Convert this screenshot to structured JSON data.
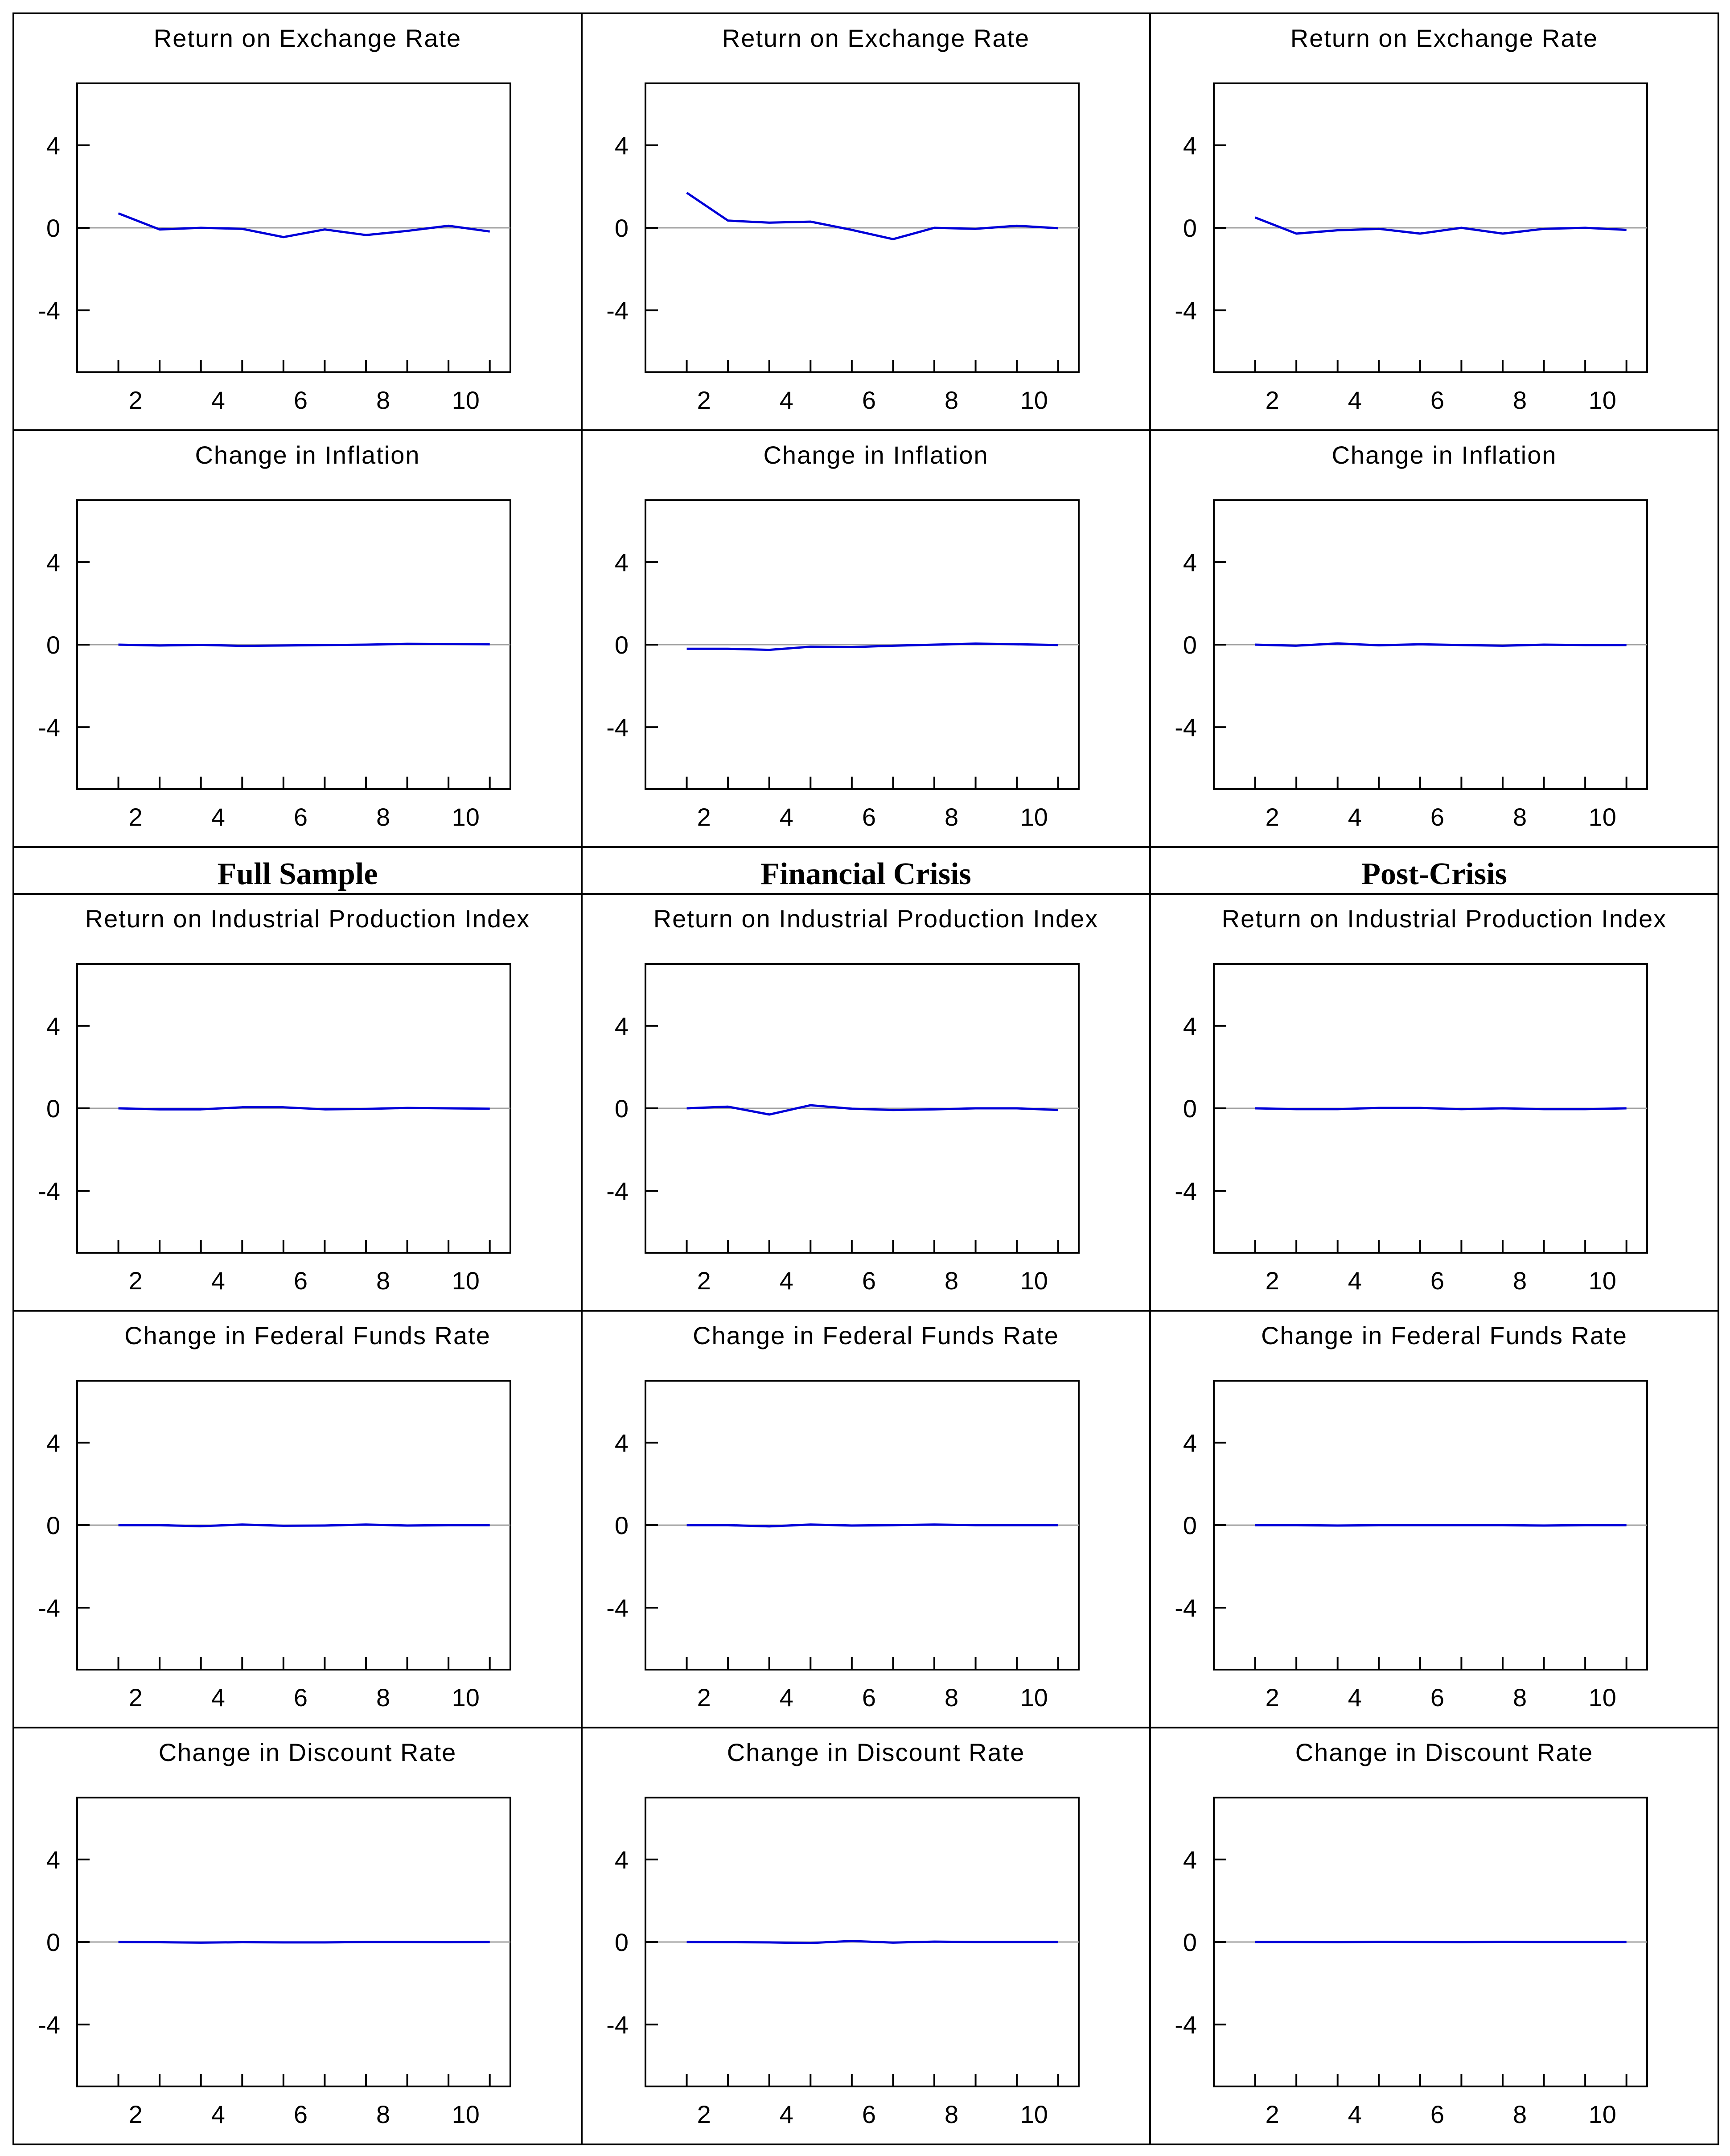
{
  "figure": {
    "column_headers": [
      "Full Sample",
      "Financial Crisis",
      "Post-Crisis"
    ],
    "row_titles": [
      "Return on Exchange Rate",
      "Change in Inflation",
      "Return on Industrial Production Index",
      "Change in Federal Funds Rate",
      "Change in Discount Rate"
    ],
    "line_color": "#0000d8",
    "zero_line_color": "#a0a0a0"
  },
  "chart_data": [
    {
      "type": "line",
      "title": "Return on Exchange Rate",
      "panel": "Full Sample",
      "x": [
        1,
        2,
        3,
        4,
        5,
        6,
        7,
        8,
        9,
        10
      ],
      "values": [
        0.7,
        -0.08,
        0.0,
        -0.05,
        -0.45,
        -0.08,
        -0.35,
        -0.15,
        0.1,
        -0.18
      ],
      "xticks": [
        2,
        4,
        6,
        8,
        10
      ],
      "yticks": [
        4,
        0,
        -4
      ],
      "xlim": [
        0,
        10.5
      ],
      "ylim": [
        -7,
        7
      ],
      "grid": false
    },
    {
      "type": "line",
      "title": "Return on Exchange Rate",
      "panel": "Financial Crisis",
      "x": [
        1,
        2,
        3,
        4,
        5,
        6,
        7,
        8,
        9,
        10
      ],
      "values": [
        1.7,
        0.35,
        0.25,
        0.3,
        -0.1,
        -0.55,
        0.0,
        -0.05,
        0.1,
        -0.02
      ],
      "xticks": [
        2,
        4,
        6,
        8,
        10
      ],
      "yticks": [
        4,
        0,
        -4
      ],
      "xlim": [
        0,
        10.5
      ],
      "ylim": [
        -7,
        7
      ],
      "grid": false
    },
    {
      "type": "line",
      "title": "Return on Exchange Rate",
      "panel": "Post-Crisis",
      "x": [
        1,
        2,
        3,
        4,
        5,
        6,
        7,
        8,
        9,
        10
      ],
      "values": [
        0.5,
        -0.28,
        -0.12,
        -0.05,
        -0.28,
        0.0,
        -0.28,
        -0.05,
        0.0,
        -0.1
      ],
      "xticks": [
        2,
        4,
        6,
        8,
        10
      ],
      "yticks": [
        4,
        0,
        -4
      ],
      "xlim": [
        0,
        10.5
      ],
      "ylim": [
        -7,
        7
      ],
      "grid": false
    },
    {
      "type": "line",
      "title": "Change in Inflation",
      "panel": "Full Sample",
      "x": [
        1,
        2,
        3,
        4,
        5,
        6,
        7,
        8,
        9,
        10
      ],
      "values": [
        0.0,
        -0.04,
        -0.01,
        -0.06,
        -0.04,
        -0.02,
        0.0,
        0.04,
        0.03,
        0.02
      ],
      "xticks": [
        2,
        4,
        6,
        8,
        10
      ],
      "yticks": [
        4,
        0,
        -4
      ],
      "xlim": [
        0,
        10.5
      ],
      "ylim": [
        -7,
        7
      ],
      "grid": false
    },
    {
      "type": "line",
      "title": "Change in Inflation",
      "panel": "Financial Crisis",
      "x": [
        1,
        2,
        3,
        4,
        5,
        6,
        7,
        8,
        9,
        10
      ],
      "values": [
        -0.2,
        -0.2,
        -0.25,
        -0.1,
        -0.12,
        -0.05,
        0.0,
        0.05,
        0.02,
        -0.02
      ],
      "xticks": [
        2,
        4,
        6,
        8,
        10
      ],
      "yticks": [
        4,
        0,
        -4
      ],
      "xlim": [
        0,
        10.5
      ],
      "ylim": [
        -7,
        7
      ],
      "grid": false
    },
    {
      "type": "line",
      "title": "Change in Inflation",
      "panel": "Post-Crisis",
      "x": [
        1,
        2,
        3,
        4,
        5,
        6,
        7,
        8,
        9,
        10
      ],
      "values": [
        0.0,
        -0.05,
        0.06,
        -0.03,
        0.02,
        -0.02,
        -0.05,
        0.0,
        -0.02,
        -0.02
      ],
      "xticks": [
        2,
        4,
        6,
        8,
        10
      ],
      "yticks": [
        4,
        0,
        -4
      ],
      "xlim": [
        0,
        10.5
      ],
      "ylim": [
        -7,
        7
      ],
      "grid": false
    },
    {
      "type": "line",
      "title": "Return on Industrial Production Index",
      "panel": "Full Sample",
      "x": [
        1,
        2,
        3,
        4,
        5,
        6,
        7,
        8,
        9,
        10
      ],
      "values": [
        0.0,
        -0.05,
        -0.05,
        0.05,
        0.05,
        -0.05,
        -0.03,
        0.02,
        0.0,
        -0.02
      ],
      "xticks": [
        2,
        4,
        6,
        8,
        10
      ],
      "yticks": [
        4,
        0,
        -4
      ],
      "xlim": [
        0,
        10.5
      ],
      "ylim": [
        -7,
        7
      ],
      "grid": false
    },
    {
      "type": "line",
      "title": "Return on Industrial Production Index",
      "panel": "Financial Crisis",
      "x": [
        1,
        2,
        3,
        4,
        5,
        6,
        7,
        8,
        9,
        10
      ],
      "values": [
        0.0,
        0.08,
        -0.3,
        0.15,
        -0.02,
        -0.08,
        -0.05,
        0.0,
        0.0,
        -0.08
      ],
      "xticks": [
        2,
        4,
        6,
        8,
        10
      ],
      "yticks": [
        4,
        0,
        -4
      ],
      "xlim": [
        0,
        10.5
      ],
      "ylim": [
        -7,
        7
      ],
      "grid": false
    },
    {
      "type": "line",
      "title": "Return on Industrial Production Index",
      "panel": "Post-Crisis",
      "x": [
        1,
        2,
        3,
        4,
        5,
        6,
        7,
        8,
        9,
        10
      ],
      "values": [
        0.0,
        -0.04,
        -0.04,
        0.02,
        0.02,
        -0.04,
        0.0,
        -0.04,
        -0.04,
        0.0
      ],
      "xticks": [
        2,
        4,
        6,
        8,
        10
      ],
      "yticks": [
        4,
        0,
        -4
      ],
      "xlim": [
        0,
        10.5
      ],
      "ylim": [
        -7,
        7
      ],
      "grid": false
    },
    {
      "type": "line",
      "title": "Change in Federal Funds Rate",
      "panel": "Full Sample",
      "x": [
        1,
        2,
        3,
        4,
        5,
        6,
        7,
        8,
        9,
        10
      ],
      "values": [
        0.0,
        0.0,
        -0.05,
        0.03,
        -0.03,
        -0.02,
        0.03,
        -0.02,
        0.0,
        0.0
      ],
      "xticks": [
        2,
        4,
        6,
        8,
        10
      ],
      "yticks": [
        4,
        0,
        -4
      ],
      "xlim": [
        0,
        10.5
      ],
      "ylim": [
        -7,
        7
      ],
      "grid": false
    },
    {
      "type": "line",
      "title": "Change in Federal Funds Rate",
      "panel": "Financial Crisis",
      "x": [
        1,
        2,
        3,
        4,
        5,
        6,
        7,
        8,
        9,
        10
      ],
      "values": [
        0.0,
        0.0,
        -0.06,
        0.03,
        -0.02,
        0.0,
        0.03,
        0.0,
        0.0,
        0.0
      ],
      "xticks": [
        2,
        4,
        6,
        8,
        10
      ],
      "yticks": [
        4,
        0,
        -4
      ],
      "xlim": [
        0,
        10.5
      ],
      "ylim": [
        -7,
        7
      ],
      "grid": false
    },
    {
      "type": "line",
      "title": "Change in Federal Funds Rate",
      "panel": "Post-Crisis",
      "x": [
        1,
        2,
        3,
        4,
        5,
        6,
        7,
        8,
        9,
        10
      ],
      "values": [
        0.0,
        0.0,
        -0.02,
        0.0,
        0.0,
        0.0,
        0.0,
        -0.02,
        0.0,
        0.0
      ],
      "xticks": [
        2,
        4,
        6,
        8,
        10
      ],
      "yticks": [
        4,
        0,
        -4
      ],
      "xlim": [
        0,
        10.5
      ],
      "ylim": [
        -7,
        7
      ],
      "grid": false
    },
    {
      "type": "line",
      "title": "Change in Discount Rate",
      "panel": "Full Sample",
      "x": [
        1,
        2,
        3,
        4,
        5,
        6,
        7,
        8,
        9,
        10
      ],
      "values": [
        0.0,
        -0.01,
        -0.03,
        -0.01,
        -0.02,
        -0.02,
        0.0,
        0.0,
        -0.01,
        0.0
      ],
      "xticks": [
        2,
        4,
        6,
        8,
        10
      ],
      "yticks": [
        4,
        0,
        -4
      ],
      "xlim": [
        0,
        10.5
      ],
      "ylim": [
        -7,
        7
      ],
      "grid": false
    },
    {
      "type": "line",
      "title": "Change in Discount Rate",
      "panel": "Financial Crisis",
      "x": [
        1,
        2,
        3,
        4,
        5,
        6,
        7,
        8,
        9,
        10
      ],
      "values": [
        0.0,
        -0.01,
        -0.02,
        -0.05,
        0.05,
        -0.03,
        0.02,
        0.0,
        0.0,
        0.0
      ],
      "xticks": [
        2,
        4,
        6,
        8,
        10
      ],
      "yticks": [
        4,
        0,
        -4
      ],
      "xlim": [
        0,
        10.5
      ],
      "ylim": [
        -7,
        7
      ],
      "grid": false
    },
    {
      "type": "line",
      "title": "Change in Discount Rate",
      "panel": "Post-Crisis",
      "x": [
        1,
        2,
        3,
        4,
        5,
        6,
        7,
        8,
        9,
        10
      ],
      "values": [
        0.0,
        0.0,
        -0.01,
        0.01,
        0.0,
        -0.01,
        0.01,
        0.0,
        0.0,
        0.0
      ],
      "xticks": [
        2,
        4,
        6,
        8,
        10
      ],
      "yticks": [
        4,
        0,
        -4
      ],
      "xlim": [
        0,
        10.5
      ],
      "ylim": [
        -7,
        7
      ],
      "grid": false
    }
  ]
}
